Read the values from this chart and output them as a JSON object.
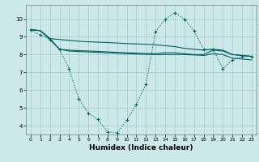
{
  "xlabel": "Humidex (Indice chaleur)",
  "bg_color": "#cce8e8",
  "grid_color": "#aacfcf",
  "line_color": "#006060",
  "xlim": [
    -0.5,
    23.5
  ],
  "ylim": [
    3.5,
    10.8
  ],
  "yticks": [
    4,
    5,
    6,
    7,
    8,
    9,
    10
  ],
  "xticks": [
    0,
    1,
    2,
    3,
    4,
    5,
    6,
    7,
    8,
    9,
    10,
    11,
    12,
    13,
    14,
    15,
    16,
    17,
    18,
    19,
    20,
    21,
    22,
    23
  ],
  "curve1_x": [
    0,
    1,
    2,
    3,
    4,
    5,
    6,
    7,
    8,
    9,
    10,
    11,
    12,
    13,
    14,
    15,
    16,
    17,
    18,
    19,
    20,
    21,
    22,
    23
  ],
  "curve1_y": [
    9.4,
    9.1,
    8.85,
    8.3,
    7.2,
    5.5,
    4.7,
    4.35,
    3.65,
    3.6,
    4.3,
    5.2,
    6.35,
    9.3,
    10.0,
    10.35,
    10.0,
    9.35,
    8.3,
    8.3,
    7.2,
    7.7,
    7.9,
    7.9
  ],
  "curve2_x": [
    0,
    1,
    2,
    3,
    4,
    5,
    6,
    7,
    8,
    9,
    10,
    11,
    12,
    13,
    14,
    15,
    16,
    17,
    18,
    19,
    20,
    21,
    22,
    23
  ],
  "curve2_y": [
    9.4,
    9.35,
    8.9,
    8.85,
    8.8,
    8.75,
    8.72,
    8.7,
    8.68,
    8.65,
    8.62,
    8.6,
    8.58,
    8.55,
    8.5,
    8.45,
    8.35,
    8.3,
    8.25,
    8.3,
    8.25,
    8.0,
    7.95,
    7.9
  ],
  "curve3_x": [
    0,
    1,
    2,
    3,
    4,
    5,
    6,
    7,
    8,
    9,
    10,
    11,
    12,
    13,
    14,
    15,
    16,
    17,
    18,
    19,
    20,
    21,
    22,
    23
  ],
  "curve3_y": [
    9.4,
    9.35,
    8.9,
    8.3,
    8.25,
    8.22,
    8.2,
    8.18,
    8.15,
    8.12,
    8.1,
    8.08,
    8.06,
    8.05,
    8.1,
    8.1,
    8.05,
    8.0,
    8.0,
    8.25,
    8.2,
    8.0,
    7.95,
    7.9
  ],
  "curve4_x": [
    0,
    1,
    2,
    3,
    4,
    5,
    6,
    7,
    8,
    9,
    10,
    11,
    12,
    13,
    14,
    15,
    16,
    17,
    18,
    19,
    20,
    21,
    22,
    23
  ],
  "curve4_y": [
    9.4,
    9.35,
    8.85,
    8.3,
    8.2,
    8.17,
    8.15,
    8.12,
    8.1,
    8.08,
    8.05,
    8.03,
    8.01,
    8.0,
    8.0,
    8.0,
    8.0,
    7.98,
    7.95,
    8.05,
    8.0,
    7.8,
    7.75,
    7.7
  ]
}
